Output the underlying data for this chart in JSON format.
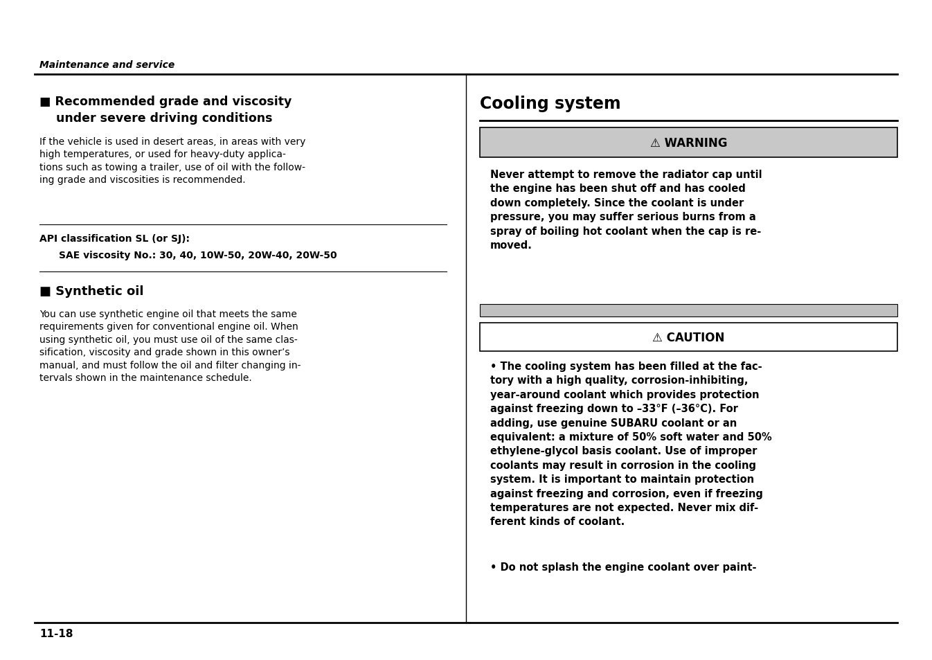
{
  "page_bg": "#ffffff",
  "header_italic": "Maintenance and service",
  "page_num": "11-18",
  "left_section1_title_line1": "■ Recommended grade and viscosity",
  "left_section1_title_line2": "    under severe driving conditions",
  "left_section1_body": "If the vehicle is used in desert areas, in areas with very\nhigh temperatures, or used for heavy-duty applica-\ntions such as towing a trailer, use of oil with the follow-\ning grade and viscosities is recommended.",
  "api_label": "API classification SL (or SJ):",
  "sae_label": "SAE viscosity No.: 30, 40, 10W-50, 20W-40, 20W-50",
  "left_section2_title": "■ Synthetic oil",
  "left_section2_body": "You can use synthetic engine oil that meets the same\nrequirements given for conventional engine oil. When\nusing synthetic oil, you must use oil of the same clas-\nsification, viscosity and grade shown in this owner’s\nmanual, and must follow the oil and filter changing in-\ntervals shown in the maintenance schedule.",
  "right_title": "Cooling system",
  "warning_label": "⚠ WARNING",
  "warning_bg": "#c8c8c8",
  "warning_text": "Never attempt to remove the radiator cap until\nthe engine has been shut off and has cooled\ndown completely. Since the coolant is under\npressure, you may suffer serious burns from a\nspray of boiling hot coolant when the cap is re-\nmoved.",
  "gray_bar_bg": "#c0c0c0",
  "caution_label": "⚠ CAUTION",
  "caution_bg": "#ffffff",
  "caution_text1": "• The cooling system has been filled at the fac-\ntory with a high quality, corrosion-inhibiting,\nyear-around coolant which provides protection\nagainst freezing down to –33°F (–36°C). For\nadding, use genuine SUBARU coolant or an\nequivalent: a mixture of 50% soft water and 50%\nethylene-glycol basis coolant. Use of improper\ncoolants may result in corrosion in the cooling\nsystem. It is important to maintain protection\nagainst freezing and corrosion, even if freezing\ntemperatures are not expected. Never mix dif-\nferent kinds of coolant.",
  "caution_text2": "• Do not splash the engine coolant over paint-"
}
